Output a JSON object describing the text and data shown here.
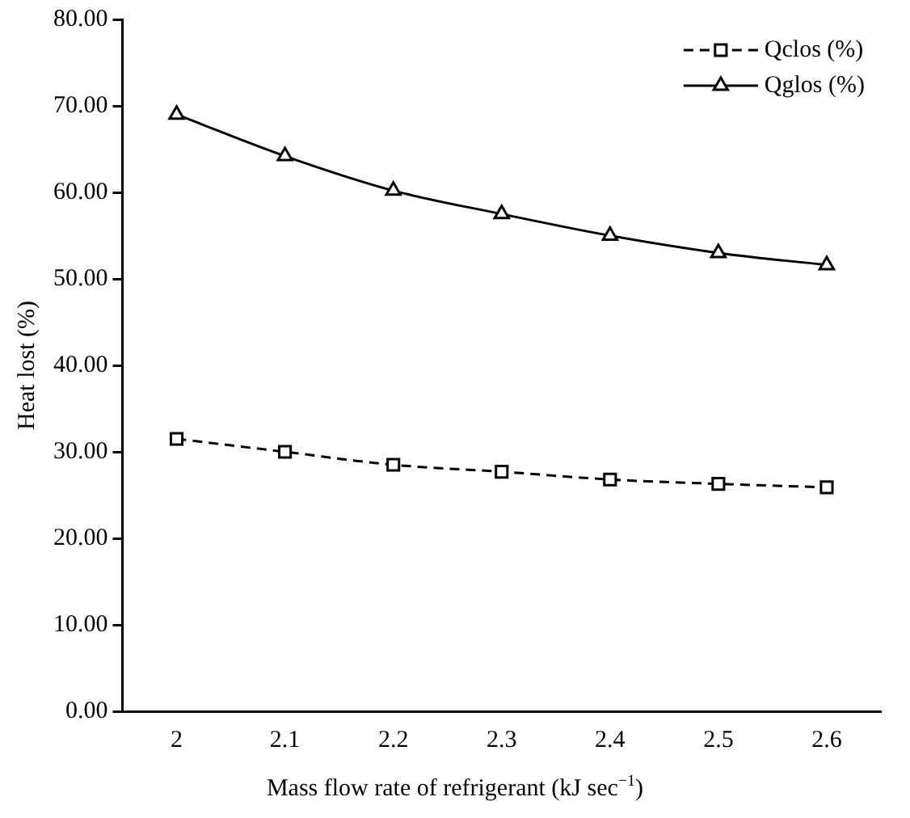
{
  "chart_data": {
    "type": "line",
    "xlabel": "Mass flow rate of refrigerant (kJ sec$^{−1}$)",
    "ylabel": "Heat lost (%)",
    "categories": [
      "2",
      "2.1",
      "2.2",
      "2.3",
      "2.4",
      "2.5",
      "2.6"
    ],
    "series": [
      {
        "name": "Qclos (%)",
        "color": "#000000",
        "marker": "square",
        "line_style": "dashed",
        "values": [
          31.5,
          30.0,
          28.5,
          27.7,
          26.8,
          26.3,
          25.9
        ]
      },
      {
        "name": "Qglos (%)",
        "color": "#000000",
        "marker": "triangle",
        "line_style": "solid",
        "values": [
          69.0,
          64.2,
          60.2,
          57.5,
          55.0,
          53.0,
          51.6
        ]
      }
    ],
    "ylim": [
      0,
      80
    ],
    "yticks": [
      {
        "value": 0,
        "label": "0.00"
      },
      {
        "value": 10,
        "label": "10.00"
      },
      {
        "value": 20,
        "label": "20.00"
      },
      {
        "value": 30,
        "label": "30.00"
      },
      {
        "value": 40,
        "label": "40.00"
      },
      {
        "value": 50,
        "label": "50.00"
      },
      {
        "value": 60,
        "label": "60.00"
      },
      {
        "value": 70,
        "label": "70.00"
      },
      {
        "value": 80,
        "label": "80.00"
      }
    ],
    "grid": false,
    "legend": "top right"
  }
}
